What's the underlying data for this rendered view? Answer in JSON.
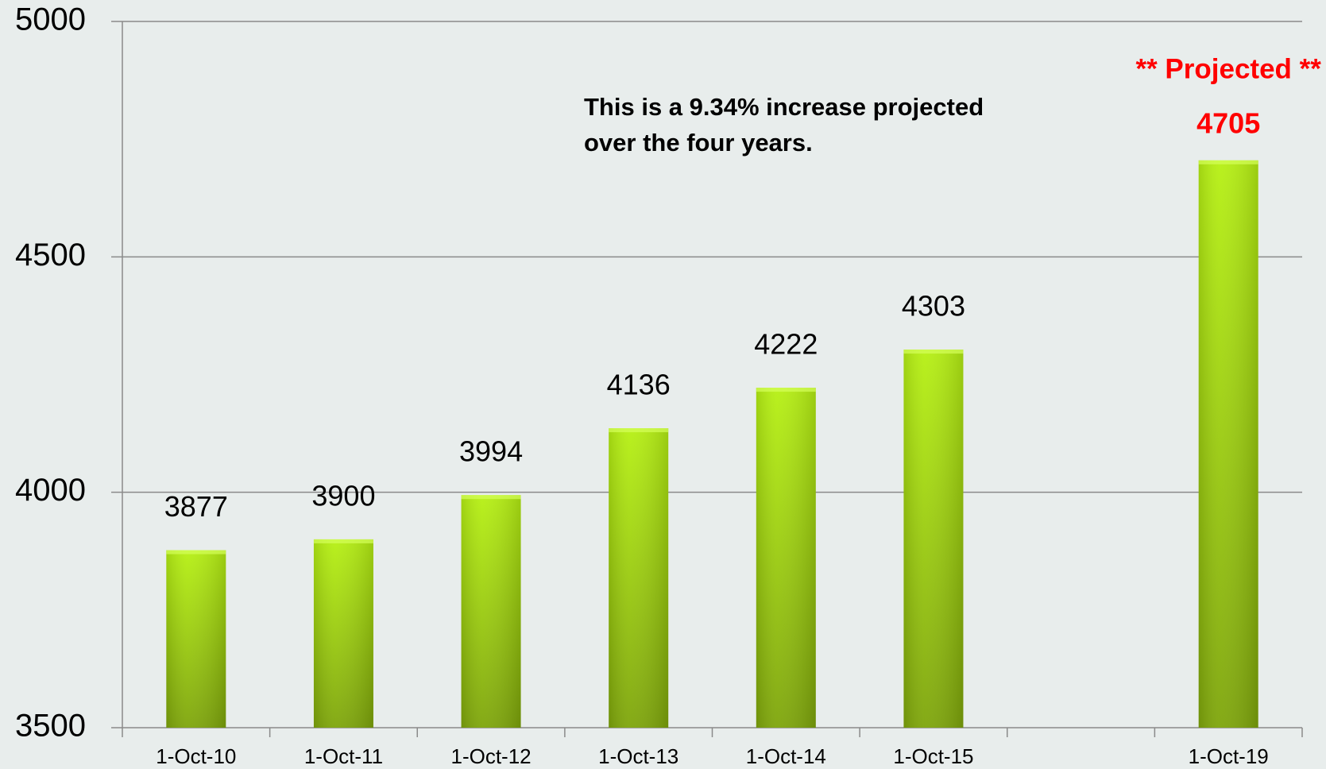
{
  "chart_data": {
    "type": "bar",
    "categories": [
      "1-Oct-10",
      "1-Oct-11",
      "1-Oct-12",
      "1-Oct-13",
      "1-Oct-14",
      "1-Oct-15",
      null,
      "1-Oct-19"
    ],
    "values": [
      3877,
      3900,
      3994,
      4136,
      4222,
      4303,
      null,
      4705
    ],
    "color": "#9fd80f",
    "ylim": [
      3500,
      5000
    ],
    "yticks": [
      3500,
      4000,
      4500,
      5000
    ],
    "grid": true,
    "annotation": [
      "This is a 9.34% increase projected",
      "over the four years."
    ],
    "projected_label": "** Projected **",
    "projected_color": "#ff0000"
  }
}
